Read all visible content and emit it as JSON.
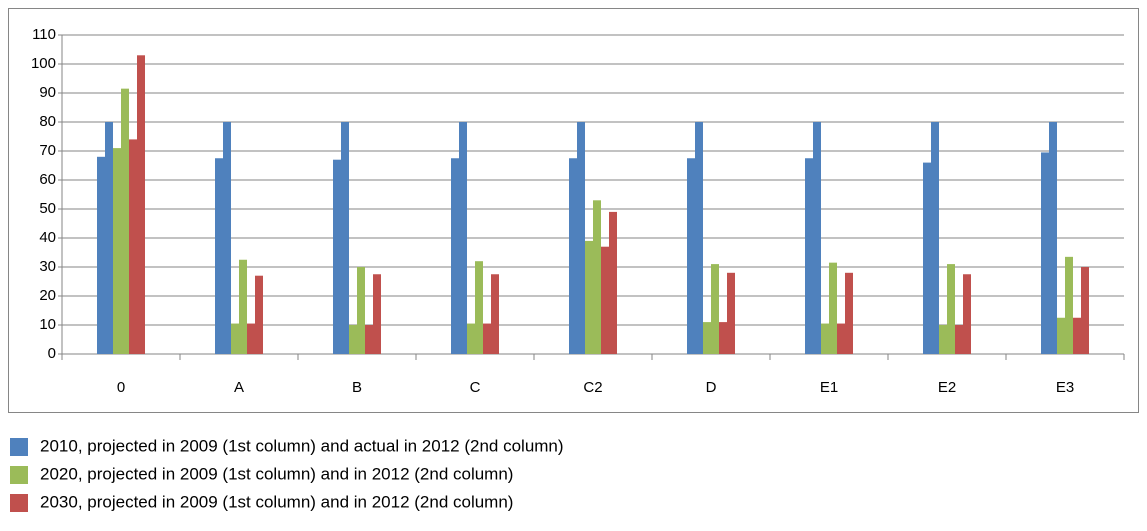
{
  "chart_data": {
    "type": "bar",
    "categories": [
      "0",
      "A",
      "B",
      "C",
      "C2",
      "D",
      "E1",
      "E2",
      "E3"
    ],
    "series": [
      {
        "name": "2010, projected in 2009 (1st column) and actual in 2012 (2nd column)",
        "color": "#4f81bd",
        "values": [
          [
            68,
            80
          ],
          [
            67.5,
            80
          ],
          [
            67,
            80
          ],
          [
            67.5,
            80
          ],
          [
            67.5,
            80
          ],
          [
            67.5,
            80
          ],
          [
            67.5,
            80
          ],
          [
            66,
            80
          ],
          [
            69.5,
            80
          ]
        ]
      },
      {
        "name": "2020, projected in 2009 (1st column) and in 2012 (2nd column)",
        "color": "#9bbb59",
        "values": [
          [
            71,
            91.5
          ],
          [
            10.5,
            32.5
          ],
          [
            10,
            30
          ],
          [
            10.5,
            32
          ],
          [
            39,
            53
          ],
          [
            11,
            31
          ],
          [
            10.5,
            31.5
          ],
          [
            10,
            31
          ],
          [
            12.5,
            33.5
          ]
        ]
      },
      {
        "name": "2030, projected in 2009 (1st column) and in 2012 (2nd column)",
        "color": "#c0504d",
        "values": [
          [
            74,
            103
          ],
          [
            10.5,
            27
          ],
          [
            10,
            27.5
          ],
          [
            10.5,
            27.5
          ],
          [
            37,
            49
          ],
          [
            11,
            28
          ],
          [
            10.5,
            28
          ],
          [
            10,
            27.5
          ],
          [
            12.5,
            30
          ]
        ]
      }
    ],
    "ylim": [
      0,
      110
    ],
    "yticks": [
      0,
      10,
      20,
      30,
      40,
      50,
      60,
      70,
      80,
      90,
      100,
      110
    ],
    "grid": true
  }
}
